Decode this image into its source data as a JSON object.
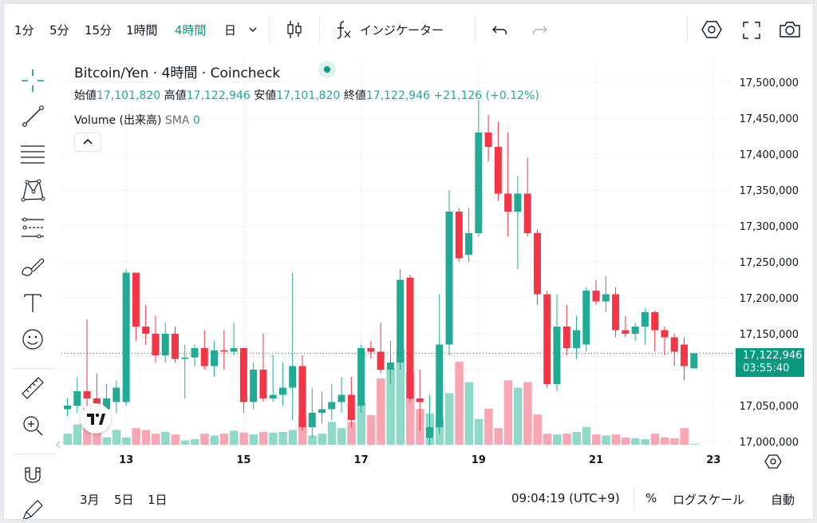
{
  "toolbar": {
    "intervals": [
      "1分",
      "5分",
      "15分",
      "1時間",
      "4時間",
      "日"
    ],
    "active_interval": "4時間",
    "indicators_label": "インジケーター"
  },
  "legend": {
    "symbol": "Bitcoin/Yen · 4時間 · Coincheck",
    "open_label": "始値",
    "open": "17,101,820",
    "high_label": "高値",
    "high": "17,122,946",
    "low_label": "安値",
    "low": "17,101,820",
    "close_label": "終値",
    "close": "17,122,946",
    "change": "+21,126 (+0.12%)",
    "volume_label": "Volume (出来高)",
    "sma_label": "SMA",
    "sma_value": "0"
  },
  "price_tag": {
    "price": "17,122,946",
    "countdown": "03:55:40"
  },
  "bottom": {
    "ranges": [
      "3月",
      "5日",
      "1日"
    ],
    "time": "09:04:19 (UTC+9)",
    "percent": "%",
    "log_scale": "ログスケール",
    "auto": "自動"
  },
  "colors": {
    "up": "#22ab94",
    "down": "#f23645",
    "up_volume": "#8fd9c9",
    "down_volume": "#f7a6b3",
    "accent": "#089981"
  },
  "chart_data": {
    "type": "candlestick",
    "y_axis": {
      "ticks": [
        17000000,
        17050000,
        17100000,
        17150000,
        17200000,
        17250000,
        17300000,
        17350000,
        17400000,
        17450000,
        17500000
      ]
    },
    "x_ticks": [
      {
        "label": "13",
        "index": 6
      },
      {
        "label": "15",
        "index": 18
      },
      {
        "label": "17",
        "index": 30
      },
      {
        "label": "19",
        "index": 42
      },
      {
        "label": "21",
        "index": 54
      },
      {
        "label": "23",
        "index": 66
      }
    ],
    "last_price": 17122946,
    "candles": [
      {
        "o": 17045000,
        "h": 17060000,
        "l": 17035000,
        "c": 17050000,
        "v": 0.3
      },
      {
        "o": 17050000,
        "h": 17090000,
        "l": 17040000,
        "c": 17070000,
        "v": 0.55
      },
      {
        "o": 17070000,
        "h": 17170000,
        "l": 17050000,
        "c": 17060000,
        "v": 1.0
      },
      {
        "o": 17060000,
        "h": 17095000,
        "l": 17030000,
        "c": 17045000,
        "v": 0.75
      },
      {
        "o": 17045000,
        "h": 17080000,
        "l": 17035000,
        "c": 17060000,
        "v": 0.2
      },
      {
        "o": 17055000,
        "h": 17085000,
        "l": 17040000,
        "c": 17075000,
        "v": 0.4
      },
      {
        "o": 17055000,
        "h": 17240000,
        "l": 17050000,
        "c": 17235000,
        "v": 0.2
      },
      {
        "o": 17235000,
        "h": 17235000,
        "l": 17140000,
        "c": 17160000,
        "v": 0.45
      },
      {
        "o": 17160000,
        "h": 17190000,
        "l": 17135000,
        "c": 17150000,
        "v": 0.4
      },
      {
        "o": 17150000,
        "h": 17175000,
        "l": 17110000,
        "c": 17120000,
        "v": 0.3
      },
      {
        "o": 17120000,
        "h": 17165000,
        "l": 17110000,
        "c": 17150000,
        "v": 0.35
      },
      {
        "o": 17150000,
        "h": 17160000,
        "l": 17110000,
        "c": 17115000,
        "v": 0.28
      },
      {
        "o": 17115000,
        "h": 17135000,
        "l": 17060000,
        "c": 17117000,
        "v": 0.12
      },
      {
        "o": 17117000,
        "h": 17135000,
        "l": 17105000,
        "c": 17130000,
        "v": 0.15
      },
      {
        "o": 17130000,
        "h": 17155000,
        "l": 17100000,
        "c": 17105000,
        "v": 0.3
      },
      {
        "o": 17105000,
        "h": 17140000,
        "l": 17090000,
        "c": 17127000,
        "v": 0.25
      },
      {
        "o": 17127000,
        "h": 17155000,
        "l": 17100000,
        "c": 17125000,
        "v": 0.3
      },
      {
        "o": 17125000,
        "h": 17165000,
        "l": 17120000,
        "c": 17130000,
        "v": 0.38
      },
      {
        "o": 17130000,
        "h": 17130000,
        "l": 17040000,
        "c": 17055000,
        "v": 0.33
      },
      {
        "o": 17055000,
        "h": 17110000,
        "l": 17045000,
        "c": 17100000,
        "v": 0.28
      },
      {
        "o": 17100000,
        "h": 17150000,
        "l": 17055000,
        "c": 17060000,
        "v": 0.35
      },
      {
        "o": 17060000,
        "h": 17120000,
        "l": 17055000,
        "c": 17065000,
        "v": 0.33
      },
      {
        "o": 17065000,
        "h": 17110000,
        "l": 17050000,
        "c": 17075000,
        "v": 0.35
      },
      {
        "o": 17075000,
        "h": 17235000,
        "l": 17030000,
        "c": 17105000,
        "v": 0.4
      },
      {
        "o": 17105000,
        "h": 17120000,
        "l": 17015000,
        "c": 17020000,
        "v": 0.8
      },
      {
        "o": 17020000,
        "h": 17075000,
        "l": 17005000,
        "c": 17040000,
        "v": 0.25
      },
      {
        "o": 17040000,
        "h": 17070000,
        "l": 17025000,
        "c": 17045000,
        "v": 0.3
      },
      {
        "o": 17045000,
        "h": 17080000,
        "l": 17030000,
        "c": 17055000,
        "v": 0.62
      },
      {
        "o": 17055000,
        "h": 17090000,
        "l": 17040000,
        "c": 17065000,
        "v": 0.45
      },
      {
        "o": 17065000,
        "h": 17090000,
        "l": 17020000,
        "c": 17030000,
        "v": 0.62
      },
      {
        "o": 17050000,
        "h": 17135000,
        "l": 17040000,
        "c": 17130000,
        "v": 1.15
      },
      {
        "o": 17130000,
        "h": 17140000,
        "l": 17115000,
        "c": 17125000,
        "v": 0.8
      },
      {
        "o": 17125000,
        "h": 17165000,
        "l": 17095000,
        "c": 17100000,
        "v": 1.8
      },
      {
        "o": 17100000,
        "h": 17140000,
        "l": 17080000,
        "c": 17110000,
        "v": 2.1
      },
      {
        "o": 17110000,
        "h": 17240000,
        "l": 17100000,
        "c": 17225000,
        "v": 2.6
      },
      {
        "o": 17228000,
        "h": 17232000,
        "l": 17055000,
        "c": 17060000,
        "v": 1.95
      },
      {
        "o": 17060000,
        "h": 17100000,
        "l": 17015000,
        "c": 17055000,
        "v": 0.97
      },
      {
        "o": 17005000,
        "h": 17065000,
        "l": 16995000,
        "c": 17020000,
        "v": 0.85
      },
      {
        "o": 17020000,
        "h": 17205000,
        "l": 17010000,
        "c": 17135000,
        "v": 0.75
      },
      {
        "o": 17135000,
        "h": 17350000,
        "l": 17120000,
        "c": 17320000,
        "v": 1.4
      },
      {
        "o": 17320000,
        "h": 17325000,
        "l": 17250000,
        "c": 17255000,
        "v": 2.25
      },
      {
        "o": 17260000,
        "h": 17325000,
        "l": 17250000,
        "c": 17290000,
        "v": 1.7
      },
      {
        "o": 17290000,
        "h": 17475000,
        "l": 17285000,
        "c": 17430000,
        "v": 0.7
      },
      {
        "o": 17430000,
        "h": 17455000,
        "l": 17390000,
        "c": 17410000,
        "v": 0.98
      },
      {
        "o": 17410000,
        "h": 17445000,
        "l": 17335000,
        "c": 17345000,
        "v": 0.45
      },
      {
        "o": 17345000,
        "h": 17430000,
        "l": 17285000,
        "c": 17320000,
        "v": 1.75
      },
      {
        "o": 17320000,
        "h": 17370000,
        "l": 17240000,
        "c": 17345000,
        "v": 1.55
      },
      {
        "o": 17345000,
        "h": 17395000,
        "l": 17285000,
        "c": 17290000,
        "v": 1.7
      },
      {
        "o": 17290000,
        "h": 17295000,
        "l": 17190000,
        "c": 17205000,
        "v": 0.82
      },
      {
        "o": 17205000,
        "h": 17210000,
        "l": 17075000,
        "c": 17080000,
        "v": 0.3
      },
      {
        "o": 17080000,
        "h": 17205000,
        "l": 17070000,
        "c": 17160000,
        "v": 0.28
      },
      {
        "o": 17160000,
        "h": 17190000,
        "l": 17120000,
        "c": 17130000,
        "v": 0.3
      },
      {
        "o": 17130000,
        "h": 17175000,
        "l": 17115000,
        "c": 17155000,
        "v": 0.35
      },
      {
        "o": 17135000,
        "h": 17215000,
        "l": 17125000,
        "c": 17210000,
        "v": 0.48
      },
      {
        "o": 17210000,
        "h": 17225000,
        "l": 17190000,
        "c": 17195000,
        "v": 0.28
      },
      {
        "o": 17195000,
        "h": 17230000,
        "l": 17180000,
        "c": 17205000,
        "v": 0.25
      },
      {
        "o": 17205000,
        "h": 17215000,
        "l": 17145000,
        "c": 17155000,
        "v": 0.28
      },
      {
        "o": 17155000,
        "h": 17175000,
        "l": 17145000,
        "c": 17150000,
        "v": 0.2
      },
      {
        "o": 17150000,
        "h": 17165000,
        "l": 17140000,
        "c": 17160000,
        "v": 0.18
      },
      {
        "o": 17160000,
        "h": 17185000,
        "l": 17135000,
        "c": 17180000,
        "v": 0.15
      },
      {
        "o": 17180000,
        "h": 17182000,
        "l": 17125000,
        "c": 17155000,
        "v": 0.3
      },
      {
        "o": 17155000,
        "h": 17160000,
        "l": 17120000,
        "c": 17145000,
        "v": 0.2
      },
      {
        "o": 17145000,
        "h": 17150000,
        "l": 17105000,
        "c": 17125000,
        "v": 0.18
      },
      {
        "o": 17135000,
        "h": 17145000,
        "l": 17085000,
        "c": 17105000,
        "v": 0.45
      },
      {
        "o": 17101820,
        "h": 17122946,
        "l": 17101820,
        "c": 17122946,
        "v": 0.02
      }
    ]
  }
}
